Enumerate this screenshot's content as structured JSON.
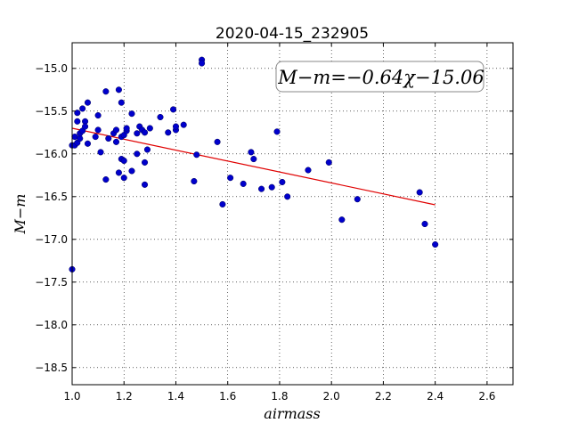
{
  "chart_data": {
    "type": "scatter",
    "title": "2020-04-15_232905",
    "xlabel": "airmass",
    "ylabel": "M−m",
    "xlim": [
      1.0,
      2.7
    ],
    "ylim": [
      -18.7,
      -14.7
    ],
    "y_inverted": true,
    "grid": true,
    "x_ticks": [
      "1.0",
      "1.2",
      "1.4",
      "1.6",
      "1.8",
      "2.0",
      "2.2",
      "2.4",
      "2.6"
    ],
    "y_ticks": [
      "−15.0",
      "−15.5",
      "−16.0",
      "−16.5",
      "−17.0",
      "−17.5",
      "−18.0",
      "−18.5"
    ],
    "annotation": "M−m=−0.64χ−15.06",
    "fit": {
      "slope": -0.64,
      "intercept": -15.06,
      "x_range": [
        1.0,
        2.4
      ],
      "color": "#e00000"
    },
    "point_color": "#0000cc",
    "points": [
      [
        1.0,
        -15.9
      ],
      [
        1.0,
        -17.35
      ],
      [
        1.01,
        -15.8
      ],
      [
        1.01,
        -15.9
      ],
      [
        1.02,
        -15.62
      ],
      [
        1.02,
        -15.87
      ],
      [
        1.02,
        -15.52
      ],
      [
        1.03,
        -15.82
      ],
      [
        1.03,
        -15.76
      ],
      [
        1.04,
        -15.47
      ],
      [
        1.04,
        -15.73
      ],
      [
        1.05,
        -15.62
      ],
      [
        1.05,
        -15.68
      ],
      [
        1.06,
        -15.4
      ],
      [
        1.06,
        -15.88
      ],
      [
        1.09,
        -15.8
      ],
      [
        1.1,
        -15.55
      ],
      [
        1.1,
        -15.72
      ],
      [
        1.11,
        -15.98
      ],
      [
        1.13,
        -16.3
      ],
      [
        1.13,
        -15.27
      ],
      [
        1.14,
        -15.82
      ],
      [
        1.16,
        -15.76
      ],
      [
        1.17,
        -15.86
      ],
      [
        1.17,
        -15.72
      ],
      [
        1.18,
        -15.25
      ],
      [
        1.18,
        -16.22
      ],
      [
        1.19,
        -15.4
      ],
      [
        1.19,
        -15.8
      ],
      [
        1.19,
        -16.06
      ],
      [
        1.2,
        -15.78
      ],
      [
        1.2,
        -16.28
      ],
      [
        1.2,
        -16.08
      ],
      [
        1.21,
        -15.73
      ],
      [
        1.21,
        -15.7
      ],
      [
        1.23,
        -16.2
      ],
      [
        1.23,
        -15.53
      ],
      [
        1.25,
        -15.76
      ],
      [
        1.25,
        -16.0
      ],
      [
        1.26,
        -15.68
      ],
      [
        1.27,
        -15.72
      ],
      [
        1.28,
        -16.1
      ],
      [
        1.28,
        -15.75
      ],
      [
        1.28,
        -16.36
      ],
      [
        1.29,
        -15.95
      ],
      [
        1.3,
        -15.7
      ],
      [
        1.34,
        -15.57
      ],
      [
        1.37,
        -15.75
      ],
      [
        1.39,
        -15.48
      ],
      [
        1.4,
        -15.72
      ],
      [
        1.4,
        -15.68
      ],
      [
        1.43,
        -15.66
      ],
      [
        1.47,
        -16.32
      ],
      [
        1.48,
        -16.01
      ],
      [
        1.5,
        -14.9
      ],
      [
        1.5,
        -14.94
      ],
      [
        1.56,
        -15.86
      ],
      [
        1.58,
        -16.59
      ],
      [
        1.61,
        -16.28
      ],
      [
        1.66,
        -16.35
      ],
      [
        1.69,
        -15.98
      ],
      [
        1.7,
        -16.06
      ],
      [
        1.73,
        -16.41
      ],
      [
        1.77,
        -16.39
      ],
      [
        1.79,
        -15.74
      ],
      [
        1.81,
        -16.33
      ],
      [
        1.83,
        -16.5
      ],
      [
        1.91,
        -16.19
      ],
      [
        1.99,
        -16.1
      ],
      [
        2.04,
        -16.77
      ],
      [
        2.1,
        -16.53
      ],
      [
        2.34,
        -16.45
      ],
      [
        2.36,
        -16.82
      ],
      [
        2.4,
        -17.06
      ]
    ]
  }
}
